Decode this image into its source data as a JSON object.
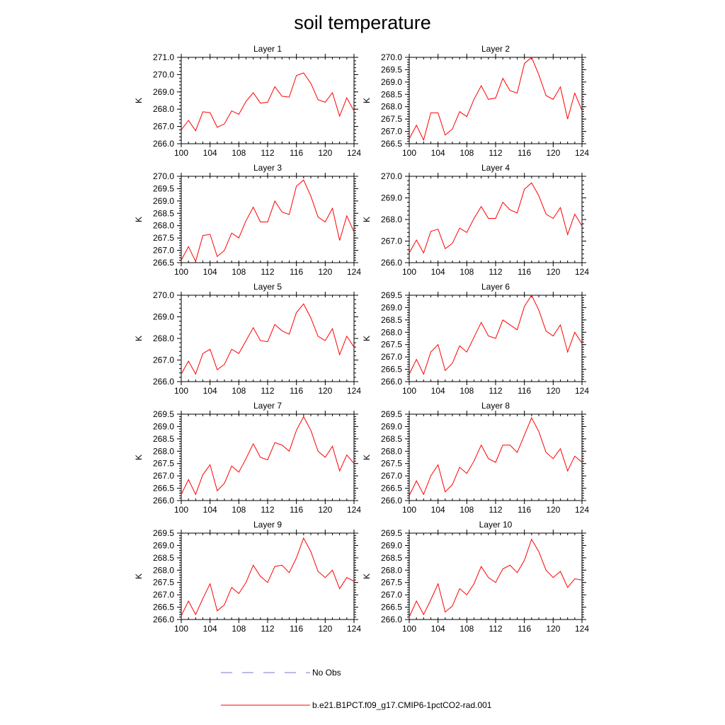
{
  "title": "soil temperature",
  "colors": {
    "model": "#ff0000",
    "obs": "#7777cc",
    "axis": "#000000"
  },
  "legend": {
    "obs_label": "No Obs",
    "model_label": "b.e21.B1PCT.f09_g17.CMIP6-1pctCO2-rad.001"
  },
  "chart_data": [
    {
      "type": "line",
      "title": "Layer 1",
      "ylabel": "K",
      "xlim": [
        100,
        124
      ],
      "ylim": [
        266.0,
        271.0
      ],
      "xticks": [
        100,
        104,
        108,
        112,
        116,
        120,
        124
      ],
      "yticks": [
        "266.0",
        "267.0",
        "268.0",
        "269.0",
        "270.0",
        "271.0"
      ],
      "x": [
        100,
        101,
        102,
        103,
        104,
        105,
        106,
        107,
        108,
        109,
        110,
        111,
        112,
        113,
        114,
        115,
        116,
        117,
        118,
        119,
        120,
        121,
        122,
        123,
        124
      ],
      "series": [
        {
          "name": "b.e21.B1PCT.f09_g17.CMIP6-1pctCO2-rad.001",
          "values": [
            266.8,
            267.35,
            266.75,
            267.85,
            267.8,
            266.95,
            267.15,
            267.9,
            267.7,
            268.45,
            268.95,
            268.35,
            268.4,
            269.3,
            268.75,
            268.7,
            269.95,
            270.1,
            269.5,
            268.55,
            268.4,
            268.95,
            267.6,
            268.65,
            267.9
          ]
        }
      ]
    },
    {
      "type": "line",
      "title": "Layer 2",
      "ylabel": "K",
      "xlim": [
        100,
        124
      ],
      "ylim": [
        266.5,
        270.0
      ],
      "xticks": [
        100,
        104,
        108,
        112,
        116,
        120,
        124
      ],
      "yticks": [
        "266.5",
        "267.0",
        "267.5",
        "268.0",
        "268.5",
        "269.0",
        "269.5",
        "270.0"
      ],
      "x": [
        100,
        101,
        102,
        103,
        104,
        105,
        106,
        107,
        108,
        109,
        110,
        111,
        112,
        113,
        114,
        115,
        116,
        117,
        118,
        119,
        120,
        121,
        122,
        123,
        124
      ],
      "series": [
        {
          "name": "b.e21.B1PCT.f09_g17.CMIP6-1pctCO2-rad.001",
          "values": [
            266.7,
            267.25,
            266.65,
            267.75,
            267.75,
            266.85,
            267.1,
            267.8,
            267.6,
            268.3,
            268.85,
            268.3,
            268.35,
            269.15,
            268.65,
            268.55,
            269.75,
            270.0,
            269.3,
            268.45,
            268.3,
            268.8,
            267.5,
            268.55,
            267.85
          ]
        }
      ]
    },
    {
      "type": "line",
      "title": "Layer 3",
      "ylabel": "K",
      "xlim": [
        100,
        124
      ],
      "ylim": [
        266.5,
        270.0
      ],
      "xticks": [
        100,
        104,
        108,
        112,
        116,
        120,
        124
      ],
      "yticks": [
        "266.5",
        "267.0",
        "267.5",
        "268.0",
        "268.5",
        "269.0",
        "269.5",
        "270.0"
      ],
      "x": [
        100,
        101,
        102,
        103,
        104,
        105,
        106,
        107,
        108,
        109,
        110,
        111,
        112,
        113,
        114,
        115,
        116,
        117,
        118,
        119,
        120,
        121,
        122,
        123,
        124
      ],
      "series": [
        {
          "name": "b.e21.B1PCT.f09_g17.CMIP6-1pctCO2-rad.001",
          "values": [
            266.6,
            267.15,
            266.55,
            267.6,
            267.65,
            266.75,
            267.0,
            267.7,
            267.5,
            268.2,
            268.75,
            268.15,
            268.15,
            269.0,
            268.55,
            268.45,
            269.6,
            269.85,
            269.2,
            268.35,
            268.15,
            268.7,
            267.4,
            268.4,
            267.75
          ]
        }
      ]
    },
    {
      "type": "line",
      "title": "Layer 4",
      "ylabel": "K",
      "xlim": [
        100,
        124
      ],
      "ylim": [
        266.0,
        270.0
      ],
      "xticks": [
        100,
        104,
        108,
        112,
        116,
        120,
        124
      ],
      "yticks": [
        "266.0",
        "267.0",
        "268.0",
        "269.0",
        "270.0"
      ],
      "x": [
        100,
        101,
        102,
        103,
        104,
        105,
        106,
        107,
        108,
        109,
        110,
        111,
        112,
        113,
        114,
        115,
        116,
        117,
        118,
        119,
        120,
        121,
        122,
        123,
        124
      ],
      "series": [
        {
          "name": "b.e21.B1PCT.f09_g17.CMIP6-1pctCO2-rad.001",
          "values": [
            266.45,
            267.05,
            266.45,
            267.45,
            267.55,
            266.65,
            266.9,
            267.6,
            267.4,
            268.05,
            268.6,
            268.05,
            268.05,
            268.8,
            268.45,
            268.3,
            269.4,
            269.7,
            269.1,
            268.25,
            268.05,
            268.55,
            267.3,
            268.25,
            267.7
          ]
        }
      ]
    },
    {
      "type": "line",
      "title": "Layer 5",
      "ylabel": "K",
      "xlim": [
        100,
        124
      ],
      "ylim": [
        266.0,
        270.0
      ],
      "xticks": [
        100,
        104,
        108,
        112,
        116,
        120,
        124
      ],
      "yticks": [
        "266.0",
        "267.0",
        "268.0",
        "269.0",
        "270.0"
      ],
      "x": [
        100,
        101,
        102,
        103,
        104,
        105,
        106,
        107,
        108,
        109,
        110,
        111,
        112,
        113,
        114,
        115,
        116,
        117,
        118,
        119,
        120,
        121,
        122,
        123,
        124
      ],
      "series": [
        {
          "name": "b.e21.B1PCT.f09_g17.CMIP6-1pctCO2-rad.001",
          "values": [
            266.35,
            266.95,
            266.35,
            267.3,
            267.5,
            266.55,
            266.8,
            267.5,
            267.3,
            267.9,
            268.5,
            267.9,
            267.85,
            268.65,
            268.35,
            268.2,
            269.2,
            269.6,
            268.95,
            268.1,
            267.9,
            268.45,
            267.25,
            268.1,
            267.6
          ]
        }
      ]
    },
    {
      "type": "line",
      "title": "Layer 6",
      "ylabel": "K",
      "xlim": [
        100,
        124
      ],
      "ylim": [
        266.0,
        269.5
      ],
      "xticks": [
        100,
        104,
        108,
        112,
        116,
        120,
        124
      ],
      "yticks": [
        "266.0",
        "266.5",
        "267.0",
        "267.5",
        "268.0",
        "268.5",
        "269.0",
        "269.5"
      ],
      "x": [
        100,
        101,
        102,
        103,
        104,
        105,
        106,
        107,
        108,
        109,
        110,
        111,
        112,
        113,
        114,
        115,
        116,
        117,
        118,
        119,
        120,
        121,
        122,
        123,
        124
      ],
      "series": [
        {
          "name": "b.e21.B1PCT.f09_g17.CMIP6-1pctCO2-rad.001",
          "values": [
            266.3,
            266.9,
            266.3,
            267.2,
            267.5,
            266.45,
            266.75,
            267.45,
            267.2,
            267.8,
            268.4,
            267.85,
            267.75,
            268.5,
            268.3,
            268.1,
            269.05,
            269.5,
            268.9,
            268.05,
            267.85,
            268.3,
            267.2,
            268.0,
            267.55
          ]
        }
      ]
    },
    {
      "type": "line",
      "title": "Layer 7",
      "ylabel": "K",
      "xlim": [
        100,
        124
      ],
      "ylim": [
        266.0,
        269.5
      ],
      "xticks": [
        100,
        104,
        108,
        112,
        116,
        120,
        124
      ],
      "yticks": [
        "266.0",
        "266.5",
        "267.0",
        "267.5",
        "268.0",
        "268.5",
        "269.0",
        "269.5"
      ],
      "x": [
        100,
        101,
        102,
        103,
        104,
        105,
        106,
        107,
        108,
        109,
        110,
        111,
        112,
        113,
        114,
        115,
        116,
        117,
        118,
        119,
        120,
        121,
        122,
        123,
        124
      ],
      "series": [
        {
          "name": "b.e21.B1PCT.f09_g17.CMIP6-1pctCO2-rad.001",
          "values": [
            266.25,
            266.85,
            266.25,
            267.05,
            267.45,
            266.4,
            266.7,
            267.4,
            267.15,
            267.7,
            268.3,
            267.75,
            267.65,
            268.35,
            268.25,
            268.0,
            268.85,
            269.4,
            268.85,
            268.0,
            267.75,
            268.2,
            267.2,
            267.85,
            267.5
          ]
        }
      ]
    },
    {
      "type": "line",
      "title": "Layer 8",
      "ylabel": "K",
      "xlim": [
        100,
        124
      ],
      "ylim": [
        266.0,
        269.5
      ],
      "xticks": [
        100,
        104,
        108,
        112,
        116,
        120,
        124
      ],
      "yticks": [
        "266.0",
        "266.5",
        "267.0",
        "267.5",
        "268.0",
        "268.5",
        "269.0",
        "269.5"
      ],
      "x": [
        100,
        101,
        102,
        103,
        104,
        105,
        106,
        107,
        108,
        109,
        110,
        111,
        112,
        113,
        114,
        115,
        116,
        117,
        118,
        119,
        120,
        121,
        122,
        123,
        124
      ],
      "series": [
        {
          "name": "b.e21.B1PCT.f09_g17.CMIP6-1pctCO2-rad.001",
          "values": [
            266.2,
            266.8,
            266.25,
            267.0,
            267.45,
            266.35,
            266.65,
            267.35,
            267.1,
            267.6,
            268.25,
            267.7,
            267.55,
            268.25,
            268.25,
            267.95,
            268.65,
            269.35,
            268.8,
            267.95,
            267.7,
            268.1,
            267.2,
            267.8,
            267.55
          ]
        }
      ]
    },
    {
      "type": "line",
      "title": "Layer 9",
      "ylabel": "K",
      "xlim": [
        100,
        124
      ],
      "ylim": [
        266.0,
        269.5
      ],
      "xticks": [
        100,
        104,
        108,
        112,
        116,
        120,
        124
      ],
      "yticks": [
        "266.0",
        "266.5",
        "267.0",
        "267.5",
        "268.0",
        "268.5",
        "269.0",
        "269.5"
      ],
      "x": [
        100,
        101,
        102,
        103,
        104,
        105,
        106,
        107,
        108,
        109,
        110,
        111,
        112,
        113,
        114,
        115,
        116,
        117,
        118,
        119,
        120,
        121,
        122,
        123,
        124
      ],
      "series": [
        {
          "name": "b.e21.B1PCT.f09_g17.CMIP6-1pctCO2-rad.001",
          "values": [
            266.15,
            266.75,
            266.2,
            266.85,
            267.45,
            266.35,
            266.6,
            267.3,
            267.05,
            267.5,
            268.2,
            267.75,
            267.5,
            268.15,
            268.2,
            267.9,
            268.5,
            269.3,
            268.75,
            267.95,
            267.7,
            268.0,
            267.25,
            267.7,
            267.55
          ]
        }
      ]
    },
    {
      "type": "line",
      "title": "Layer 10",
      "ylabel": "K",
      "xlim": [
        100,
        124
      ],
      "ylim": [
        266.0,
        269.5
      ],
      "xticks": [
        100,
        104,
        108,
        112,
        116,
        120,
        124
      ],
      "yticks": [
        "266.0",
        "266.5",
        "267.0",
        "267.5",
        "268.0",
        "268.5",
        "269.0",
        "269.5"
      ],
      "x": [
        100,
        101,
        102,
        103,
        104,
        105,
        106,
        107,
        108,
        109,
        110,
        111,
        112,
        113,
        114,
        115,
        116,
        117,
        118,
        119,
        120,
        121,
        122,
        123,
        124
      ],
      "series": [
        {
          "name": "b.e21.B1PCT.f09_g17.CMIP6-1pctCO2-rad.001",
          "values": [
            266.1,
            266.75,
            266.2,
            266.8,
            267.45,
            266.3,
            266.55,
            267.25,
            267.0,
            267.45,
            268.15,
            267.7,
            267.5,
            268.05,
            268.2,
            267.9,
            268.4,
            269.25,
            268.75,
            268.0,
            267.7,
            267.95,
            267.3,
            267.65,
            267.6
          ]
        }
      ]
    }
  ]
}
